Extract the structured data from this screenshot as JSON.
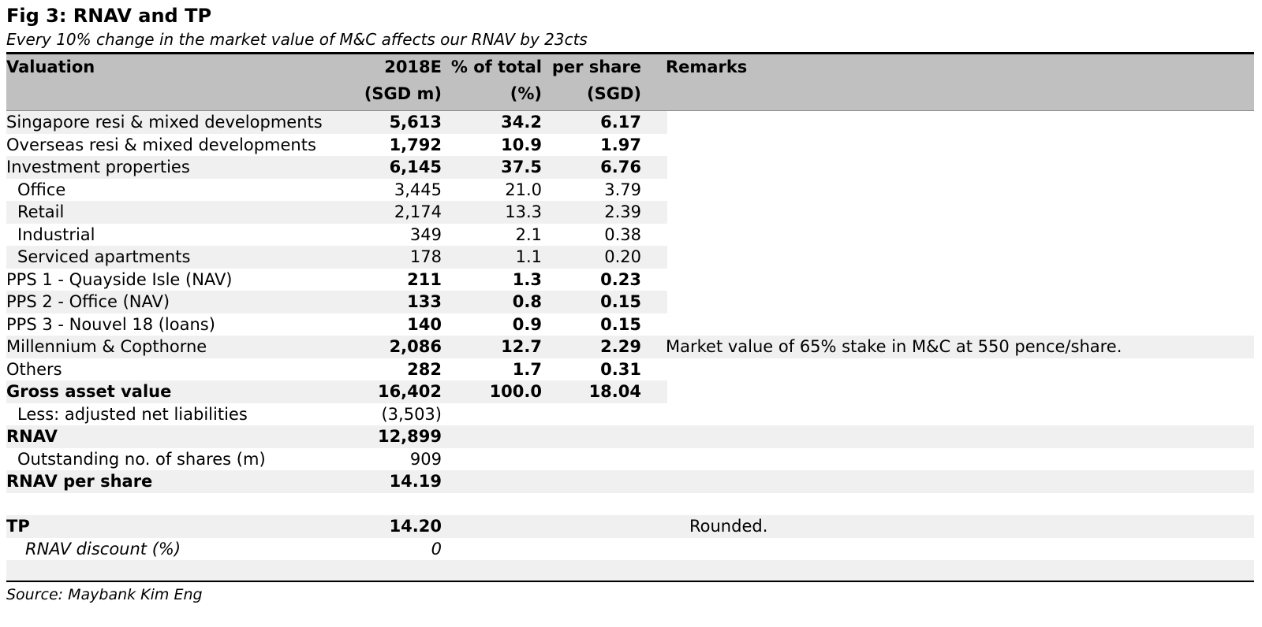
{
  "figure": {
    "title": "Fig 3: RNAV and TP",
    "subtitle": "Every 10% change in the market value of M&C affects our RNAV by 23cts",
    "source": "Source: Maybank Kim Eng"
  },
  "table": {
    "headers": {
      "valuation": "Valuation",
      "col_2018e": "2018E",
      "col_2018e_unit": "(SGD m)",
      "col_pct": "% of total",
      "col_pct_unit": "(%)",
      "col_ps": "per share",
      "col_ps_unit": "(SGD)",
      "remarks": "Remarks"
    },
    "rows": [
      {
        "label": "Singapore resi & mixed developments",
        "value": "5,613",
        "pct": "34.2",
        "per_share": "6.17",
        "remark": ""
      },
      {
        "label": "Overseas resi & mixed developments",
        "value": "1,792",
        "pct": "10.9",
        "per_share": "1.97",
        "remark": ""
      },
      {
        "label": "Investment properties",
        "value": "6,145",
        "pct": "37.5",
        "per_share": "6.76",
        "remark": ""
      },
      {
        "label": "Office",
        "value": "3,445",
        "pct": "21.0",
        "per_share": "3.79",
        "remark": ""
      },
      {
        "label": "Retail",
        "value": "2,174",
        "pct": "13.3",
        "per_share": "2.39",
        "remark": ""
      },
      {
        "label": "Industrial",
        "value": "349",
        "pct": "2.1",
        "per_share": "0.38",
        "remark": ""
      },
      {
        "label": "Serviced apartments",
        "value": "178",
        "pct": "1.1",
        "per_share": "0.20",
        "remark": ""
      },
      {
        "label": "PPS 1 - Quayside Isle (NAV)",
        "value": "211",
        "pct": "1.3",
        "per_share": "0.23",
        "remark": ""
      },
      {
        "label": "PPS 2 - Office (NAV)",
        "value": "133",
        "pct": "0.8",
        "per_share": "0.15",
        "remark": ""
      },
      {
        "label": "PPS 3 - Nouvel 18 (loans)",
        "value": "140",
        "pct": "0.9",
        "per_share": "0.15",
        "remark": ""
      },
      {
        "label": "Millennium & Copthorne",
        "value": "2,086",
        "pct": "12.7",
        "per_share": "2.29",
        "remark": "Market value of 65% stake in M&C at 550 pence/share."
      },
      {
        "label": "Others",
        "value": "282",
        "pct": "1.7",
        "per_share": "0.31",
        "remark": ""
      },
      {
        "label": "Gross asset value",
        "value": "16,402",
        "pct": "100.0",
        "per_share": "18.04",
        "remark": ""
      },
      {
        "label": "Less: adjusted net liabilities",
        "value": "(3,503)",
        "pct": "",
        "per_share": "",
        "remark": ""
      },
      {
        "label": "RNAV",
        "value": "12,899",
        "pct": "",
        "per_share": "",
        "remark": ""
      },
      {
        "label": "Outstanding no. of shares (m)",
        "value": "909",
        "pct": "",
        "per_share": "",
        "remark": ""
      },
      {
        "label": "RNAV per share",
        "value": "14.19",
        "pct": "",
        "per_share": "",
        "remark": ""
      },
      {
        "label": "",
        "value": "",
        "pct": "",
        "per_share": "",
        "remark": ""
      },
      {
        "label": "TP",
        "value": "14.20",
        "pct": "",
        "per_share": "",
        "remark": "Rounded."
      },
      {
        "label": "RNAV discount (%)",
        "value": "0",
        "pct": "",
        "per_share": "",
        "remark": ""
      },
      {
        "label": "",
        "value": "",
        "pct": "",
        "per_share": "",
        "remark": ""
      }
    ]
  }
}
